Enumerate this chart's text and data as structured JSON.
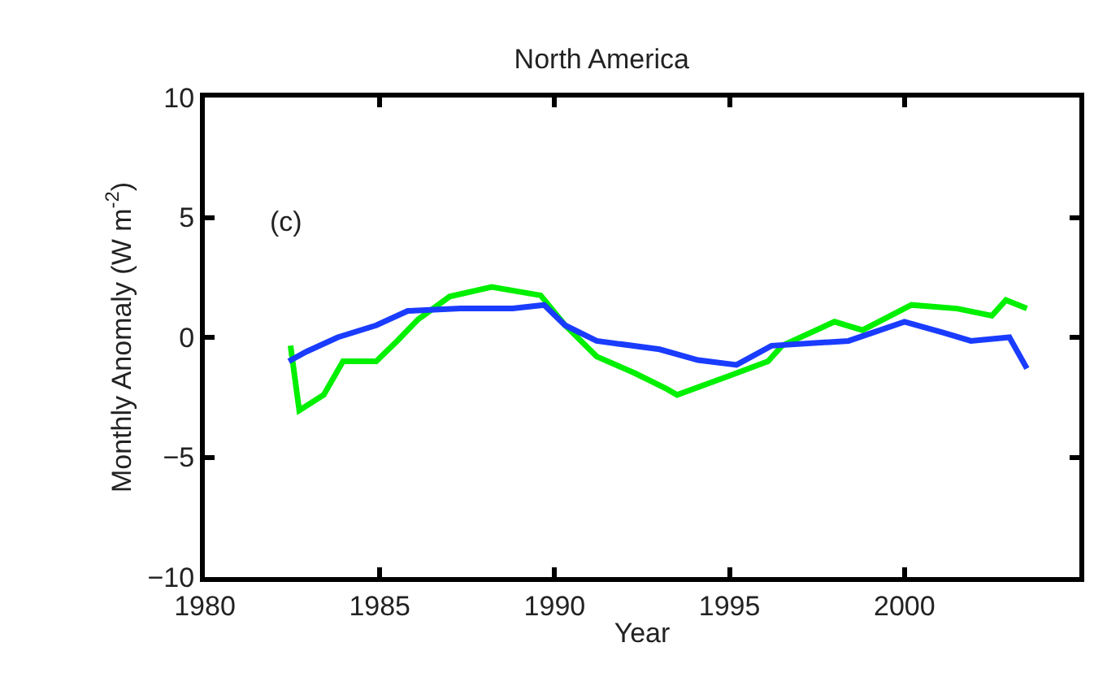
{
  "chart_data": {
    "type": "line",
    "title": "North America",
    "xlabel": "Year",
    "ylabel": "Monthly Anomaly (W m$^{-2}$)",
    "annotations": [
      "(c)"
    ],
    "xlim": [
      1980,
      2005
    ],
    "xticks": [
      1980,
      1985,
      1990,
      1995,
      2000
    ],
    "ylim": [
      -10,
      10
    ],
    "yticks": [
      -10,
      -5,
      0,
      5,
      10
    ],
    "series": [
      {
        "color": "#00f000",
        "x": [
          1982.45,
          1982.7,
          1983.4,
          1983.95,
          1984.9,
          1985.5,
          1986.1,
          1987.0,
          1988.2,
          1989.6,
          1990.3,
          1991.2,
          1992.3,
          1993.2,
          1993.5,
          1995.0,
          1996.1,
          1996.5,
          1998.0,
          1998.8,
          2000.2,
          2001.5,
          2002.5,
          2002.9,
          2003.5
        ],
        "values": [
          -0.35,
          -3.05,
          -2.4,
          -1.0,
          -1.0,
          -0.15,
          0.75,
          1.7,
          2.1,
          1.75,
          0.5,
          -0.8,
          -1.5,
          -2.15,
          -2.4,
          -1.6,
          -1.0,
          -0.35,
          0.65,
          0.3,
          1.35,
          1.2,
          0.9,
          1.55,
          1.2
        ]
      },
      {
        "color": "#1a3cff",
        "x": [
          1982.4,
          1982.9,
          1983.8,
          1984.9,
          1985.8,
          1987.3,
          1988.8,
          1989.7,
          1990.3,
          1991.2,
          1993.0,
          1994.1,
          1995.2,
          1996.2,
          1998.4,
          2000.0,
          2001.1,
          2001.9,
          2003.0,
          2003.5
        ],
        "values": [
          -1.0,
          -0.6,
          0.0,
          0.5,
          1.1,
          1.2,
          1.2,
          1.35,
          0.5,
          -0.15,
          -0.5,
          -0.95,
          -1.15,
          -0.35,
          -0.15,
          0.65,
          0.2,
          -0.15,
          0.0,
          -1.3
        ]
      }
    ]
  }
}
